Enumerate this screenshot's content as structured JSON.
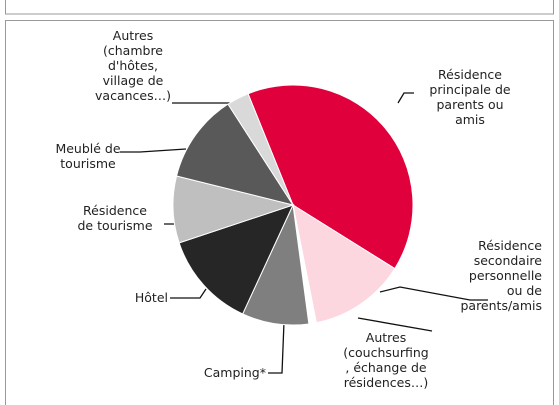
{
  "chart_data": {
    "type": "pie",
    "categories": [
      "Résidence\nprincipale de\nparents ou\namis",
      "Résidence\nsecondaire\npersonnelle\nou de\nparents/amis",
      "Autres\n(couchsurfing\n, échange de\nrésidences…)",
      "Camping*",
      "Hôtel",
      "Résidence\nde tourisme",
      "Meublé de\ntourisme",
      "Autres\n(chambre\nd'hôtes,\nvillage de\nvacances…)"
    ],
    "values": [
      40,
      13,
      1,
      9,
      13,
      9,
      12,
      3
    ],
    "colors": [
      "#e0003c",
      "#fcd7e0",
      "#ffffff",
      "#7f7f7f",
      "#262626",
      "#bfbfbf",
      "#595959",
      "#d9d9d9"
    ]
  }
}
